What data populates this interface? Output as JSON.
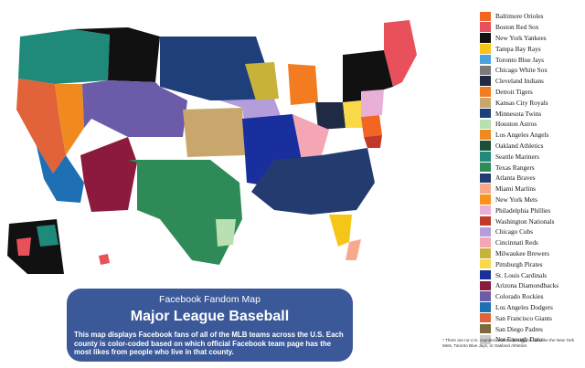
{
  "info": {
    "kicker": "Facebook Fandom Map",
    "title": "Major League Baseball",
    "description": "This map displays Facebook fans of all of the MLB teams across the U.S. Each county is color-coded based on which official Facebook team page has the most likes from people who live in that county."
  },
  "footnote": "* There are no U.S. counties where a plurality of fans like the New York Mets, Toronto Blue Jays, or Oakland Athletics",
  "legend": [
    {
      "label": "Baltimore Orioles",
      "color": "#f26522"
    },
    {
      "label": "Boston Red Sox",
      "color": "#e8505b"
    },
    {
      "label": "New York Yankees",
      "color": "#111111"
    },
    {
      "label": "Tampa Bay Rays",
      "color": "#f5c518"
    },
    {
      "label": "Toronto Blue Jays",
      "color": "#4aa3df"
    },
    {
      "label": "Chicago White Sox",
      "color": "#7a7a7a"
    },
    {
      "label": "Cleveland Indians",
      "color": "#1f2a44"
    },
    {
      "label": "Detroit Tigers",
      "color": "#f47c20"
    },
    {
      "label": "Kansas City Royals",
      "color": "#c9a66b"
    },
    {
      "label": "Minnesota Twins",
      "color": "#1f3f7a"
    },
    {
      "label": "Houston Astros",
      "color": "#b8e0b0"
    },
    {
      "label": "Los Angeles Angels",
      "color": "#f08a1f"
    },
    {
      "label": "Oakland Athletics",
      "color": "#1b4f3a"
    },
    {
      "label": "Seattle Mariners",
      "color": "#1f8a7a"
    },
    {
      "label": "Texas Rangers",
      "color": "#2e8b57"
    },
    {
      "label": "Atlanta Braves",
      "color": "#233b6e"
    },
    {
      "label": "Miami Marlins",
      "color": "#f9a98b"
    },
    {
      "label": "New York Mets",
      "color": "#f7931e"
    },
    {
      "label": "Philadelphia Phillies",
      "color": "#e8b0d6"
    },
    {
      "label": "Washington Nationals",
      "color": "#c0392b"
    },
    {
      "label": "Chicago Cubs",
      "color": "#b39ddb"
    },
    {
      "label": "Cincinnati Reds",
      "color": "#f4a6b4"
    },
    {
      "label": "Milwaukee Brewers",
      "color": "#c8b23a"
    },
    {
      "label": "Pittsburgh Pirates",
      "color": "#f9d84a"
    },
    {
      "label": "St. Louis Cardinals",
      "color": "#1a2f9e"
    },
    {
      "label": "Arizona Diamondbacks",
      "color": "#8b1a3d"
    },
    {
      "label": "Colorado Rockies",
      "color": "#6b5ba8"
    },
    {
      "label": "Los Angeles Dodgers",
      "color": "#1f6fb5"
    },
    {
      "label": "San Francisco Giants",
      "color": "#e2623a"
    },
    {
      "label": "San Diego Padres",
      "color": "#7b6a3a"
    },
    {
      "label": "Not Enough Data",
      "color": "#cccccc"
    }
  ]
}
